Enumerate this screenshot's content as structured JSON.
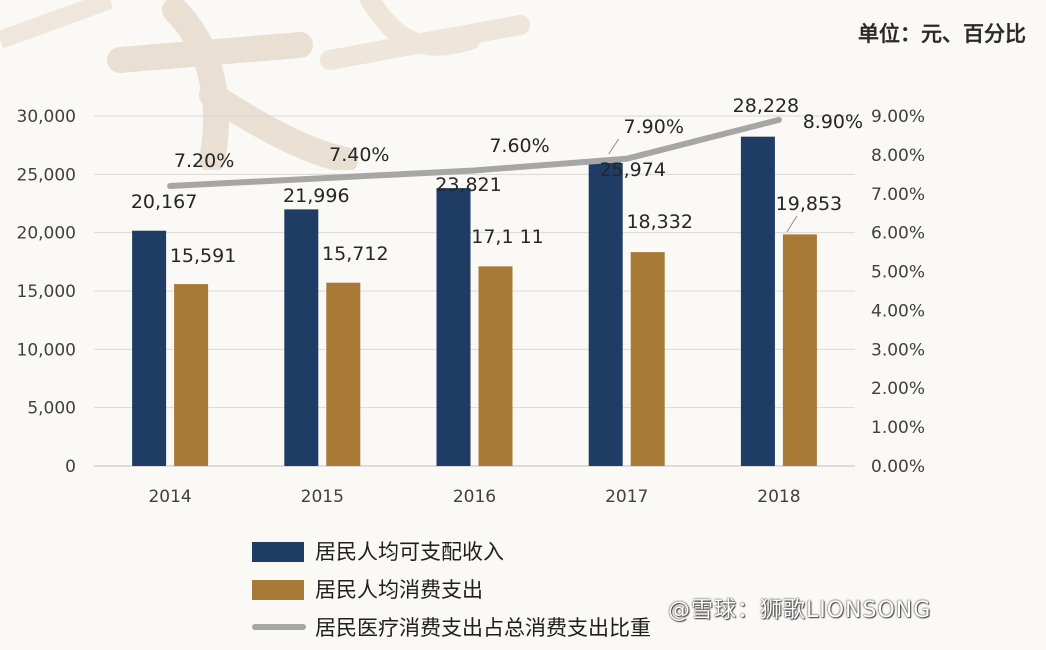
{
  "unit_label": "单位：元、百分比",
  "watermark_credit": "@雪球：狮歌LIONSONG",
  "colors": {
    "income": "#1f3c64",
    "spending": "#a97a35",
    "ratio": "#a6a6a6",
    "grid": "#d9d9d9"
  },
  "chart_data": {
    "type": "bar",
    "categories": [
      "2014",
      "2015",
      "2016",
      "2017",
      "2018"
    ],
    "series": [
      {
        "name": "居民人均可支配收入",
        "type": "bar",
        "axis": "left",
        "values": [
          20167,
          21996,
          23821,
          25974,
          28228
        ],
        "labels": [
          "20,167",
          "21,996",
          "23,821",
          "25,974",
          "28,228"
        ]
      },
      {
        "name": "居民人均消费支出",
        "type": "bar",
        "axis": "left",
        "values": [
          15591,
          15712,
          17111,
          18332,
          19853
        ],
        "labels": [
          "15,591",
          "15,712",
          "17,1 11",
          "18,332",
          "19,853"
        ]
      },
      {
        "name": "居民医疗消费支出占总消费支出比重",
        "type": "line",
        "axis": "right",
        "values": [
          7.2,
          7.4,
          7.6,
          7.9,
          8.9
        ],
        "labels": [
          "7.20%",
          "7.40%",
          "7.60%",
          "7.90%",
          "8.90%"
        ]
      }
    ],
    "y_left": {
      "range": [
        0,
        30000
      ],
      "ticks": [
        "0",
        "5,000",
        "10,000",
        "15,000",
        "20,000",
        "25,000",
        "30,000"
      ]
    },
    "y_right": {
      "range": [
        0,
        9
      ],
      "ticks": [
        "0.00%",
        "1.00%",
        "2.00%",
        "3.00%",
        "4.00%",
        "5.00%",
        "6.00%",
        "7.00%",
        "8.00%",
        "9.00%"
      ]
    },
    "grid": true,
    "legend_position": "bottom-left"
  }
}
